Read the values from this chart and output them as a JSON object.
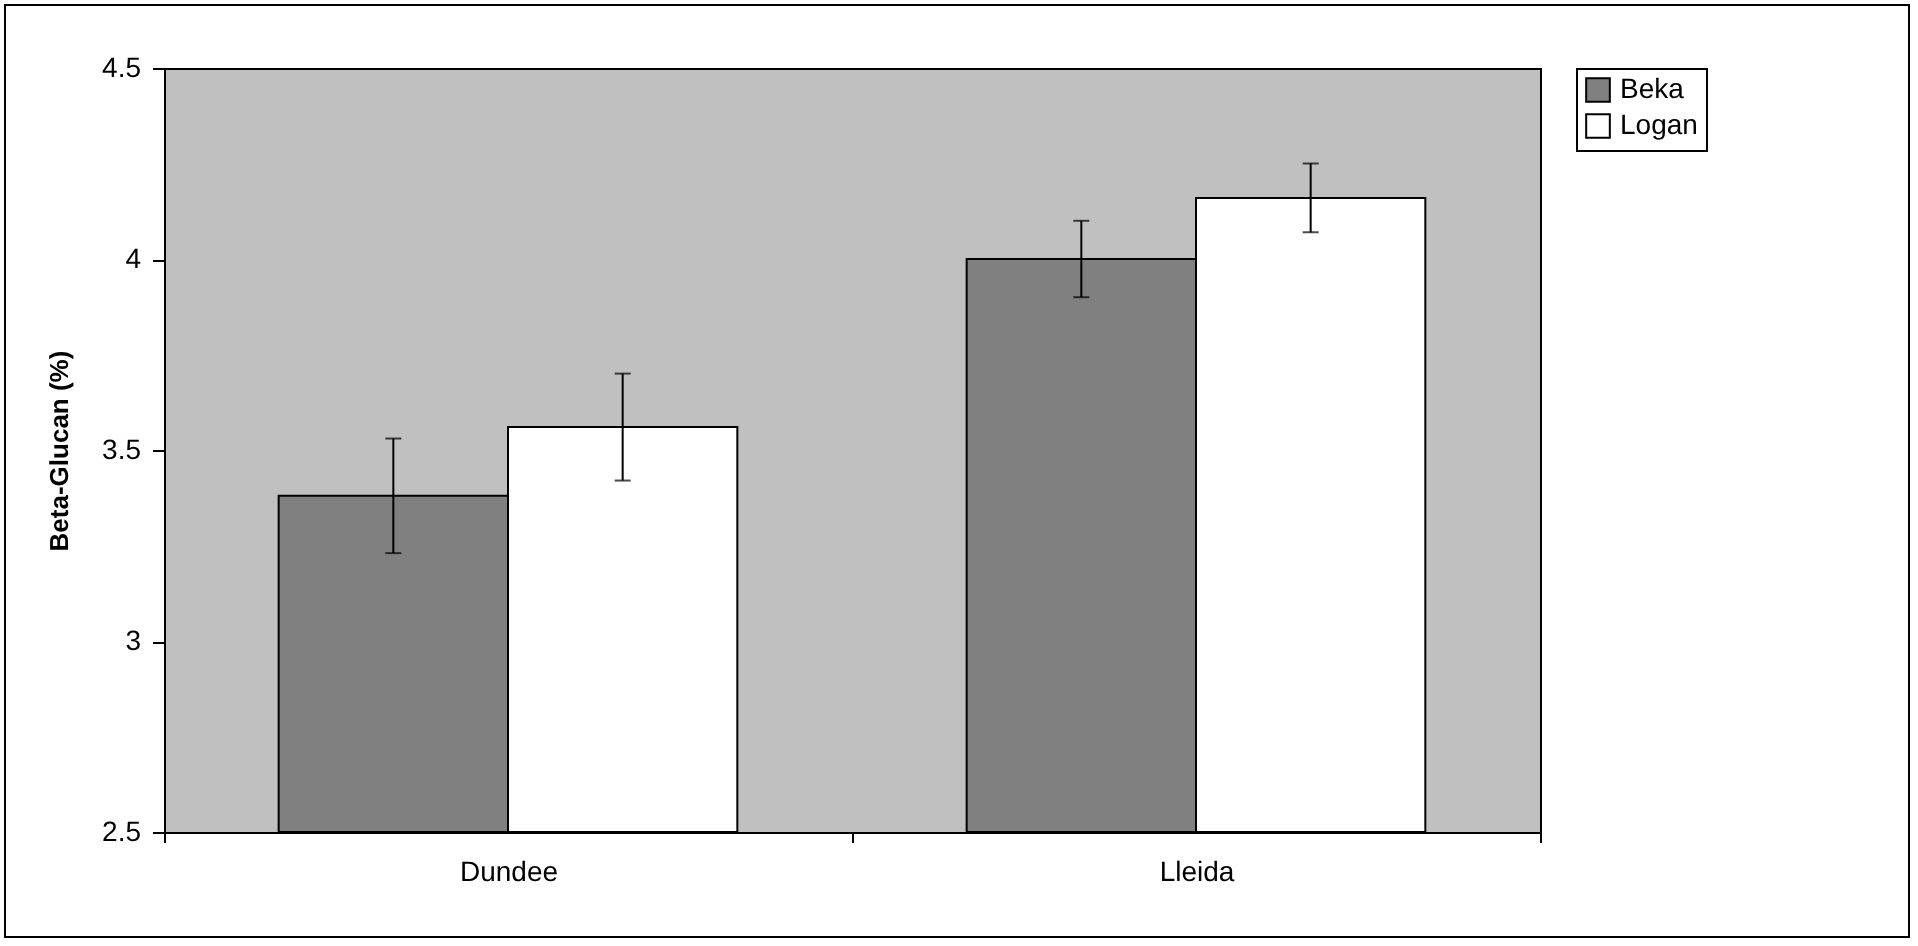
{
  "chart_data": {
    "type": "bar",
    "ylabel": "Beta-Glucan (%)",
    "categories": [
      "Dundee",
      "Lleida"
    ],
    "series": [
      {
        "name": "Beka",
        "color": "#808080",
        "values": [
          3.38,
          4.0
        ],
        "errors": [
          0.15,
          0.1
        ]
      },
      {
        "name": "Logan",
        "color": "#ffffff",
        "values": [
          3.56,
          4.16
        ],
        "errors": [
          0.14,
          0.09
        ]
      }
    ],
    "ylim": [
      2.5,
      4.5
    ],
    "yticks": [
      2.5,
      3,
      3.5,
      4,
      4.5
    ],
    "legend": "right"
  }
}
